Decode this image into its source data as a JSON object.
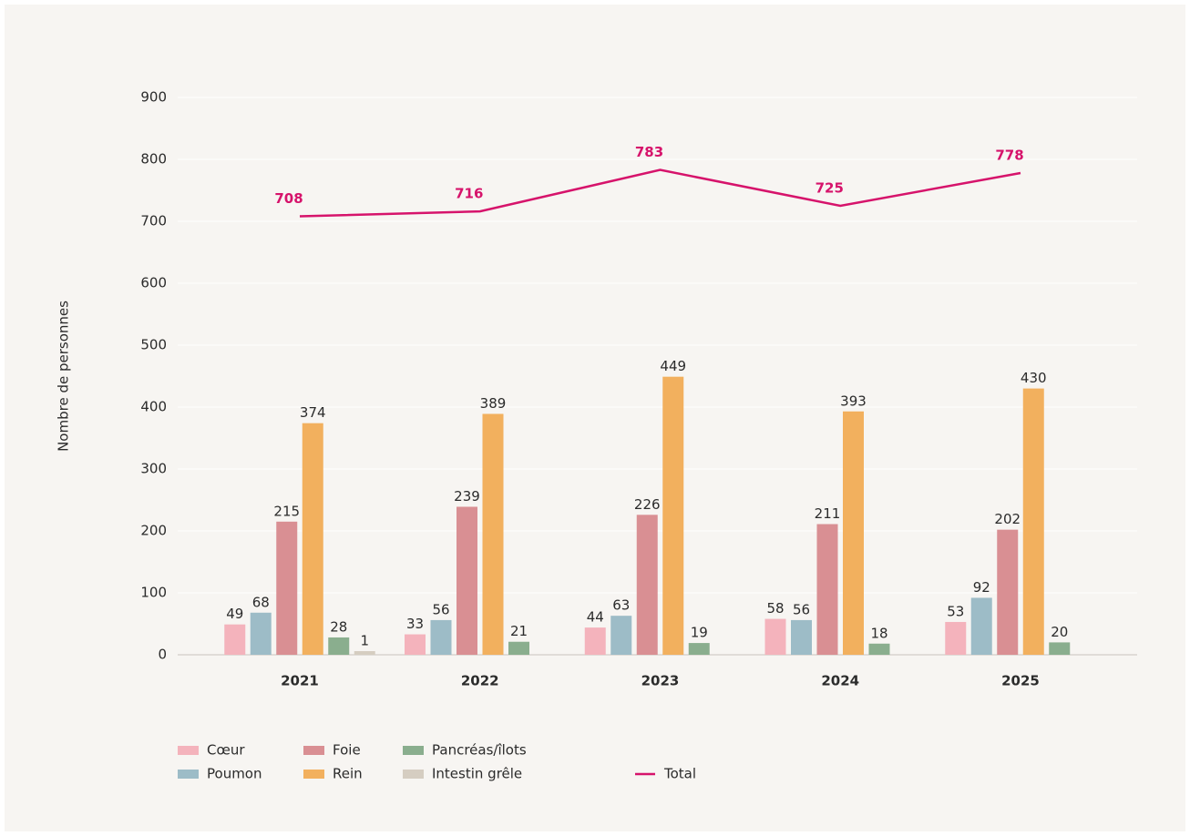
{
  "chart_data": {
    "type": "bar",
    "y_label": "Nombre de personnes",
    "categories": [
      "2021",
      "2022",
      "2023",
      "2024",
      "2025"
    ],
    "series": [
      {
        "name": "Cœur",
        "color": "#f4b3bc",
        "values": [
          49,
          33,
          44,
          58,
          53
        ]
      },
      {
        "name": "Poumon",
        "color": "#9dbcc7",
        "values": [
          68,
          56,
          63,
          56,
          92
        ]
      },
      {
        "name": "Foie",
        "color": "#d98f93",
        "values": [
          215,
          239,
          226,
          211,
          202
        ]
      },
      {
        "name": "Rein",
        "color": "#f2b05e",
        "values": [
          374,
          389,
          449,
          393,
          430
        ]
      },
      {
        "name": "Pancréas/îlots",
        "color": "#8aae8e",
        "values": [
          28,
          21,
          19,
          18,
          20
        ]
      },
      {
        "name": "Intestin grêle",
        "color": "#d5cdc1",
        "values": [
          1,
          null,
          null,
          null,
          null
        ]
      },
      {
        "name": "Total",
        "type": "line",
        "color": "#d6136b",
        "values": [
          708,
          716,
          783,
          725,
          778
        ]
      }
    ],
    "ylim": [
      0,
      900
    ],
    "yticks": [
      0,
      100,
      200,
      300,
      400,
      500,
      600,
      700,
      800,
      900
    ],
    "grid": true
  }
}
